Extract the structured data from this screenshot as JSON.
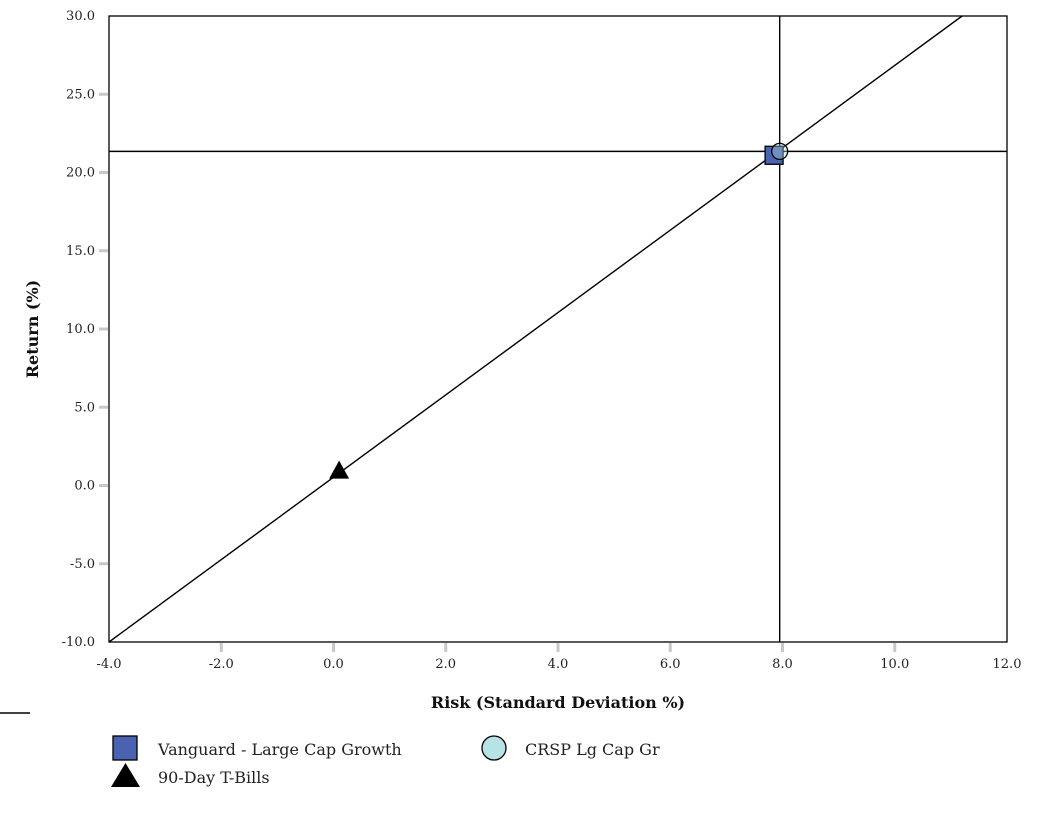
{
  "chart_data": {
    "type": "scatter",
    "title": "",
    "xlabel": "Risk (Standard Deviation %)",
    "ylabel": "Return (%)",
    "xlim": [
      -4.0,
      12.0
    ],
    "ylim": [
      -10.0,
      30.0
    ],
    "x_ticks": [
      -4.0,
      -2.0,
      0.0,
      2.0,
      4.0,
      6.0,
      8.0,
      10.0,
      12.0
    ],
    "y_ticks": [
      -10.0,
      -5.0,
      0.0,
      5.0,
      10.0,
      15.0,
      20.0,
      25.0,
      30.0
    ],
    "x_tick_labels": [
      "-4.0",
      "-2.0",
      "0.0",
      "2.0",
      "4.0",
      "6.0",
      "8.0",
      "10.0",
      "12.0"
    ],
    "y_tick_labels": [
      "-10.0",
      "-5.0",
      "0.0",
      "5.0",
      "10.0",
      "15.0",
      "20.0",
      "25.0",
      "30.0"
    ],
    "grid": false,
    "legend_position": "bottom",
    "series": [
      {
        "name": "Vanguard - Large Cap Growth",
        "marker": "square",
        "color": "#4a63b0",
        "x": 7.85,
        "y": 21.1
      },
      {
        "name": "CRSP Lg Cap Gr",
        "marker": "circle",
        "color": "#b7e3e6",
        "x": 7.95,
        "y": 21.35
      },
      {
        "name": "90-Day T-Bills",
        "marker": "triangle",
        "color": "#000000",
        "x": 0.1,
        "y": 0.95
      }
    ],
    "capital_market_line": {
      "from": [
        -4.0,
        -10.0
      ],
      "to": [
        11.2,
        30.0
      ]
    },
    "reference_lines": {
      "vertical_x": 7.95,
      "horizontal_y": 21.35
    }
  }
}
